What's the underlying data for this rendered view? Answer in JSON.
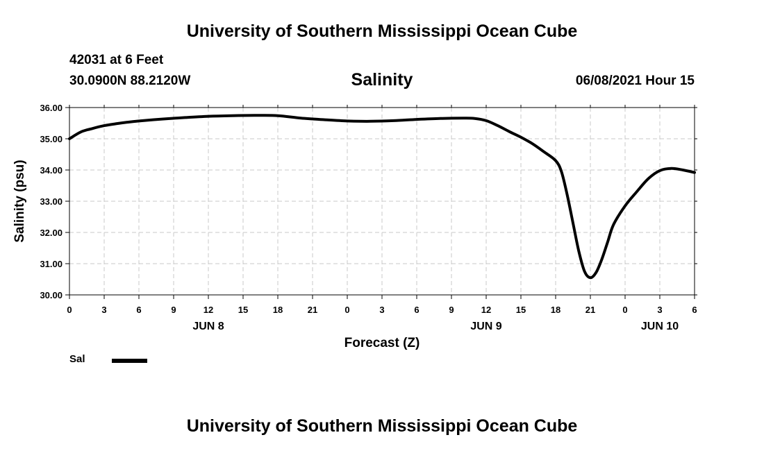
{
  "header": {
    "title": "University of Southern Mississippi Ocean Cube",
    "station": "42031 at 6 Feet",
    "coordinates": "30.0900N  88.2120W",
    "subtitle": "Salinity",
    "datetime": "06/08/2021 Hour 15"
  },
  "footer": {
    "title": "University of Southern Mississippi Ocean Cube"
  },
  "legend": {
    "label": "Sal",
    "color": "#000000"
  },
  "chart_data": {
    "type": "line",
    "title": "Salinity",
    "xlabel": "Forecast (Z)",
    "ylabel": "Salinity (psu)",
    "xlim": [
      0,
      54
    ],
    "ylim": [
      30,
      36
    ],
    "grid": true,
    "y_ticks": [
      {
        "value": 30,
        "label": "30.00"
      },
      {
        "value": 31,
        "label": "31.00"
      },
      {
        "value": 32,
        "label": "32.00"
      },
      {
        "value": 33,
        "label": "33.00"
      },
      {
        "value": 34,
        "label": "34.00"
      },
      {
        "value": 35,
        "label": "35.00"
      },
      {
        "value": 36,
        "label": "36.00"
      }
    ],
    "x_ticks": [
      {
        "value": 0,
        "label": "0"
      },
      {
        "value": 3,
        "label": "3"
      },
      {
        "value": 6,
        "label": "6"
      },
      {
        "value": 9,
        "label": "9"
      },
      {
        "value": 12,
        "label": "12"
      },
      {
        "value": 15,
        "label": "15"
      },
      {
        "value": 18,
        "label": "18"
      },
      {
        "value": 21,
        "label": "21"
      },
      {
        "value": 24,
        "label": "0"
      },
      {
        "value": 27,
        "label": "3"
      },
      {
        "value": 30,
        "label": "6"
      },
      {
        "value": 33,
        "label": "9"
      },
      {
        "value": 36,
        "label": "12"
      },
      {
        "value": 39,
        "label": "15"
      },
      {
        "value": 42,
        "label": "18"
      },
      {
        "value": 45,
        "label": "21"
      },
      {
        "value": 48,
        "label": "0"
      },
      {
        "value": 51,
        "label": "3"
      },
      {
        "value": 54,
        "label": "6"
      }
    ],
    "day_labels": [
      {
        "value": 12,
        "label": "JUN 8"
      },
      {
        "value": 36,
        "label": "JUN 9"
      },
      {
        "value": 51,
        "label": "JUN 10"
      }
    ],
    "series": [
      {
        "name": "Sal",
        "color": "#000000",
        "x": [
          0,
          1,
          2,
          3,
          4,
          5,
          6,
          8,
          10,
          12,
          14,
          16,
          18,
          20,
          22,
          24,
          26,
          28,
          30,
          32,
          34,
          35,
          36,
          37,
          38,
          39,
          40,
          41,
          42,
          42.5,
          43,
          43.5,
          44,
          44.5,
          45,
          45.5,
          46,
          46.5,
          47,
          48,
          49,
          50,
          51,
          52,
          53,
          54
        ],
        "values": [
          35.0,
          35.22,
          35.33,
          35.42,
          35.48,
          35.53,
          35.57,
          35.63,
          35.68,
          35.72,
          35.74,
          35.75,
          35.74,
          35.66,
          35.61,
          35.57,
          35.56,
          35.58,
          35.62,
          35.65,
          35.66,
          35.65,
          35.58,
          35.42,
          35.23,
          35.05,
          34.84,
          34.58,
          34.3,
          33.95,
          33.2,
          32.3,
          31.4,
          30.75,
          30.55,
          30.72,
          31.15,
          31.7,
          32.25,
          32.85,
          33.3,
          33.72,
          33.98,
          34.05,
          34.0,
          33.92
        ]
      }
    ]
  }
}
